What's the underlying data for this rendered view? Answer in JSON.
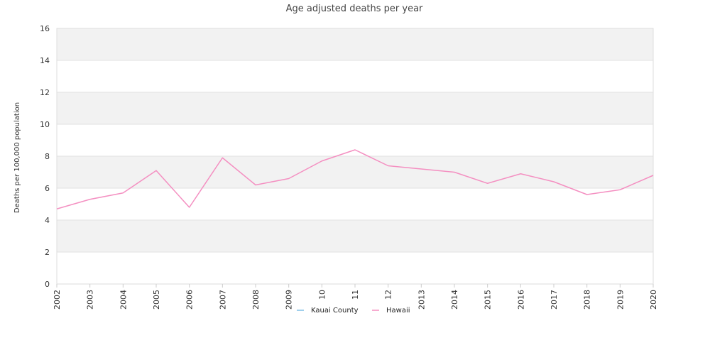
{
  "chart_data": {
    "type": "line",
    "title": "Age adjusted deaths per year",
    "xlabel": "",
    "ylabel": "Deaths per 100,000 population",
    "categories": [
      "2002",
      "2003",
      "2004",
      "2005",
      "2006",
      "2007",
      "2008",
      "2009",
      "10",
      "11",
      "12",
      "2013",
      "2014",
      "2015",
      "2016",
      "2017",
      "2018",
      "2019",
      "2020"
    ],
    "ylim": [
      0,
      16
    ],
    "yticks": [
      0,
      2,
      4,
      6,
      8,
      10,
      12,
      14,
      16
    ],
    "grid": true,
    "legend_position": "bottom-center",
    "series": [
      {
        "name": "Kauai County",
        "color": "#7fbfe6",
        "values": [
          null,
          null,
          null,
          null,
          null,
          null,
          null,
          null,
          null,
          null,
          null,
          null,
          null,
          null,
          null,
          null,
          null,
          null,
          null
        ]
      },
      {
        "name": "Hawaii",
        "color": "#f48fc1",
        "values": [
          4.7,
          5.3,
          5.7,
          7.1,
          4.8,
          7.9,
          6.2,
          6.6,
          7.7,
          8.4,
          7.4,
          7.2,
          7.0,
          6.3,
          6.9,
          6.4,
          5.6,
          5.9,
          6.8
        ]
      }
    ],
    "band_colors": [
      "#f2f2f2",
      "#ffffff"
    ]
  }
}
